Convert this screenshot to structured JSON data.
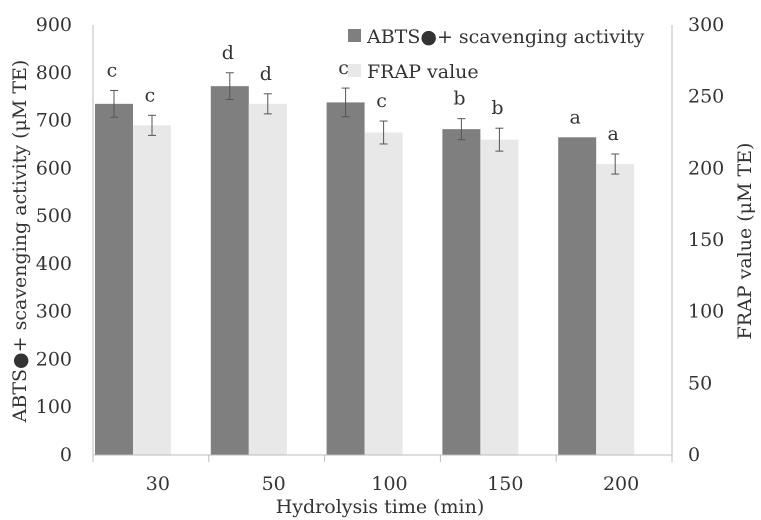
{
  "chart_data": {
    "type": "bar",
    "xlabel": "Hydrolysis time (min)",
    "ylabel": "ABTS●+ scavenging activity (μM TE)",
    "y2label": "FRAP value (μM TE)",
    "categories": [
      "30",
      "50",
      "100",
      "150",
      "200"
    ],
    "ylim": [
      0,
      900
    ],
    "yticks": [
      "0",
      "100",
      "200",
      "300",
      "400",
      "500",
      "600",
      "700",
      "800",
      "900"
    ],
    "y2lim": [
      0,
      300
    ],
    "y2ticks": [
      "0",
      "50",
      "100",
      "150",
      "200",
      "250",
      "300"
    ],
    "legend_position": "top-right",
    "grid": false,
    "series": [
      {
        "name": "ABTS●+ scavenging activity",
        "axis": "left",
        "color": "#7f7f7f",
        "values": [
          735,
          772,
          738,
          682,
          665
        ],
        "errors": [
          28,
          28,
          30,
          22,
          0
        ],
        "labels": [
          "c",
          "d",
          "c",
          "b",
          "a"
        ]
      },
      {
        "name": "FRAP value",
        "axis": "right",
        "color": "#e8e8e8",
        "values": [
          230,
          245,
          225,
          220,
          203
        ],
        "errors": [
          7,
          7,
          8,
          8,
          7
        ],
        "labels": [
          "c",
          "d",
          "c",
          "b",
          "a"
        ]
      }
    ]
  }
}
